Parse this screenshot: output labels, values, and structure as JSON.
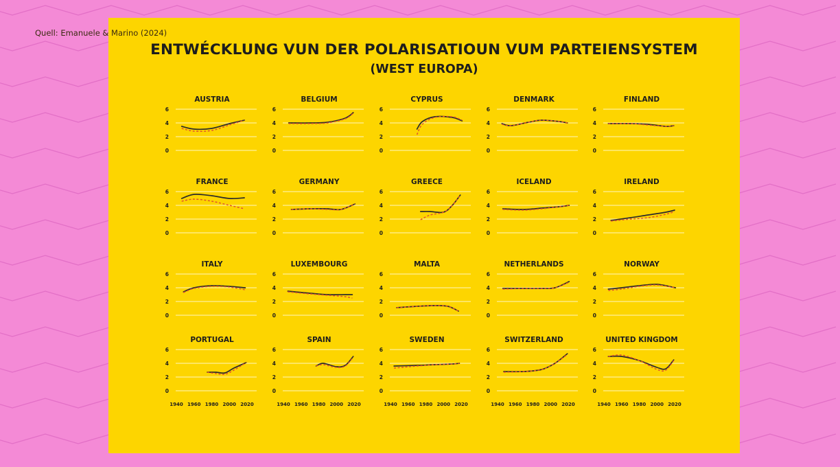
{
  "source": "Quell: Emanuele & Marino (2024)",
  "title_line1": "ENTWÉCKLUNG VUN DER POLARISATIOUN VUM PARTEIENSYSTEM",
  "title_line2": "(WEST EUROPA)",
  "colors": {
    "background": "#f48ad6",
    "zigzag": "#e26fc6",
    "panel": "#fdd500",
    "solid_line": "#2b2b2b",
    "dashed_line": "#e0532f",
    "gridline": "#fff6c2",
    "text": "#1d1d1d"
  },
  "chart_data": {
    "type": "line",
    "layout": "small-multiples 4x5",
    "ylim": [
      0,
      6
    ],
    "yticks": [
      0,
      2,
      4,
      6
    ],
    "xlim": [
      1940,
      2020
    ],
    "xticks": [
      1940,
      1960,
      1980,
      2000,
      2020
    ],
    "series_styles": [
      "solid",
      "dashed"
    ],
    "panels": [
      {
        "title": "AUSTRIA",
        "x": [
          1946,
          1960,
          1980,
          2000,
          2017
        ],
        "solid": [
          3.5,
          3.1,
          3.2,
          3.9,
          4.4
        ],
        "dashed": [
          3.2,
          2.8,
          2.9,
          3.7,
          4.4
        ]
      },
      {
        "title": "BELGIUM",
        "x": [
          1946,
          1970,
          1990,
          2010,
          2019
        ],
        "solid": [
          4.0,
          4.0,
          4.1,
          4.7,
          5.5
        ],
        "dashed": [
          3.9,
          3.9,
          4.0,
          4.6,
          5.4
        ]
      },
      {
        "title": "CYPRUS",
        "x": [
          1970,
          1976,
          1990,
          2010,
          2021
        ],
        "solid": [
          3.1,
          4.2,
          4.9,
          4.8,
          4.3
        ],
        "dashed": [
          2.3,
          3.8,
          4.8,
          4.9,
          4.4
        ]
      },
      {
        "title": "DENMARK",
        "x": [
          1945,
          1955,
          1975,
          1990,
          2010,
          2019
        ],
        "solid": [
          3.9,
          3.6,
          4.1,
          4.4,
          4.2,
          4.0
        ],
        "dashed": [
          3.8,
          3.6,
          4.1,
          4.4,
          4.2,
          4.0
        ]
      },
      {
        "title": "FINLAND",
        "x": [
          1945,
          1970,
          1990,
          2010,
          2019
        ],
        "solid": [
          3.9,
          3.9,
          3.8,
          3.5,
          3.6
        ],
        "dashed": [
          3.9,
          3.9,
          3.7,
          3.5,
          3.6
        ]
      },
      {
        "title": "FRANCE",
        "x": [
          1946,
          1960,
          1980,
          2000,
          2017
        ],
        "solid": [
          5.0,
          5.6,
          5.4,
          5.0,
          5.1
        ],
        "dashed": [
          4.6,
          4.9,
          4.6,
          4.0,
          3.5
        ]
      },
      {
        "title": "GERMANY",
        "x": [
          1949,
          1970,
          1990,
          2005,
          2021
        ],
        "solid": [
          3.4,
          3.5,
          3.5,
          3.4,
          4.2
        ],
        "dashed": [
          3.4,
          3.5,
          3.4,
          3.4,
          4.2
        ]
      },
      {
        "title": "GREECE",
        "x": [
          1974,
          1985,
          2000,
          2010,
          2019
        ],
        "solid": [
          3.1,
          3.1,
          3.0,
          4.0,
          5.5
        ],
        "dashed": [
          1.9,
          2.6,
          3.0,
          4.0,
          5.5
        ]
      },
      {
        "title": "ICELAND",
        "x": [
          1946,
          1970,
          1990,
          2010,
          2021
        ],
        "solid": [
          3.5,
          3.4,
          3.6,
          3.8,
          4.0
        ],
        "dashed": [
          3.4,
          3.3,
          3.5,
          3.8,
          4.0
        ]
      },
      {
        "title": "IRELAND",
        "x": [
          1948,
          1970,
          1990,
          2010,
          2020
        ],
        "solid": [
          1.8,
          2.2,
          2.6,
          3.0,
          3.3
        ],
        "dashed": [
          1.7,
          2.0,
          2.2,
          2.7,
          3.1
        ]
      },
      {
        "title": "ITALY",
        "x": [
          1948,
          1960,
          1980,
          2000,
          2018
        ],
        "solid": [
          3.4,
          4.0,
          4.3,
          4.2,
          4.0
        ],
        "dashed": [
          3.3,
          3.9,
          4.2,
          4.1,
          3.7
        ]
      },
      {
        "title": "LUXEMBOURG",
        "x": [
          1945,
          1970,
          1990,
          2010,
          2018
        ],
        "solid": [
          3.5,
          3.2,
          3.0,
          3.0,
          3.0
        ],
        "dashed": [
          3.4,
          3.1,
          2.9,
          2.7,
          2.5
        ]
      },
      {
        "title": "MALTA",
        "x": [
          1947,
          1970,
          1990,
          2005,
          2017
        ],
        "solid": [
          1.1,
          1.3,
          1.4,
          1.3,
          0.6
        ],
        "dashed": [
          1.1,
          1.3,
          1.4,
          1.3,
          0.6
        ]
      },
      {
        "title": "NETHERLANDS",
        "x": [
          1946,
          1970,
          1990,
          2005,
          2021
        ],
        "solid": [
          3.9,
          3.9,
          3.9,
          4.0,
          4.9
        ],
        "dashed": [
          3.8,
          3.9,
          3.9,
          4.0,
          4.8
        ]
      },
      {
        "title": "NORWAY",
        "x": [
          1945,
          1960,
          1980,
          2000,
          2021
        ],
        "solid": [
          3.8,
          4.0,
          4.3,
          4.5,
          4.0
        ],
        "dashed": [
          3.6,
          3.8,
          4.2,
          4.4,
          4.0
        ]
      },
      {
        "title": "PORTUGAL",
        "x": [
          1975,
          1985,
          1995,
          2005,
          2019
        ],
        "solid": [
          2.7,
          2.7,
          2.6,
          3.3,
          4.1
        ],
        "dashed": [
          2.7,
          2.5,
          2.4,
          3.0,
          4.1
        ]
      },
      {
        "title": "SPAIN",
        "x": [
          1977,
          1985,
          2000,
          2010,
          2019
        ],
        "solid": [
          3.6,
          4.0,
          3.5,
          3.7,
          5.0
        ],
        "dashed": [
          3.6,
          3.8,
          3.4,
          3.6,
          4.9
        ]
      },
      {
        "title": "SWEDEN",
        "x": [
          1944,
          1970,
          1990,
          2010,
          2018
        ],
        "solid": [
          3.6,
          3.7,
          3.8,
          3.9,
          4.0
        ],
        "dashed": [
          3.3,
          3.6,
          3.8,
          3.9,
          4.0
        ]
      },
      {
        "title": "SWITZERLAND",
        "x": [
          1947,
          1970,
          1990,
          2005,
          2019
        ],
        "solid": [
          2.8,
          2.8,
          3.1,
          4.0,
          5.4
        ],
        "dashed": [
          2.7,
          2.8,
          3.1,
          4.0,
          5.3
        ]
      },
      {
        "title": "UNITED KINGDOM",
        "x": [
          1945,
          1960,
          1980,
          2000,
          2010,
          2019
        ],
        "solid": [
          5.0,
          5.0,
          4.4,
          3.4,
          3.2,
          4.5
        ],
        "dashed": [
          5.0,
          5.2,
          4.4,
          3.1,
          3.0,
          4.4
        ]
      }
    ]
  }
}
